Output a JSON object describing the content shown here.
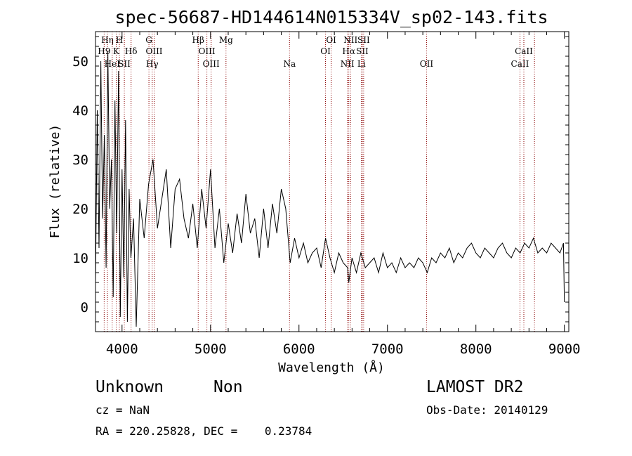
{
  "chart_data": {
    "type": "line",
    "title": "spec-56687-HD144614N015334V_sp02-143.fits",
    "xlabel": "Wavelength (Å)",
    "ylabel": "Flux (relative)",
    "xlim": [
      3700,
      9050
    ],
    "ylim": [
      -5,
      56
    ],
    "x_ticks": [
      4000,
      5000,
      6000,
      7000,
      8000,
      9000
    ],
    "y_ticks": [
      0,
      10,
      20,
      30,
      40,
      50
    ],
    "grid": false,
    "line_color": "#000000",
    "marker_color": "#8b0000",
    "series": [
      {
        "x": [
          3700,
          3720,
          3740,
          3760,
          3780,
          3800,
          3820,
          3840,
          3860,
          3880,
          3900,
          3920,
          3940,
          3960,
          3980,
          4000,
          4020,
          4040,
          4060,
          4080,
          4100,
          4130,
          4160,
          4200,
          4250,
          4300,
          4350,
          4400,
          4450,
          4500,
          4550,
          4600,
          4650,
          4700,
          4750,
          4800,
          4850,
          4900,
          4950,
          5000,
          5050,
          5100,
          5150,
          5200,
          5250,
          5300,
          5350,
          5400,
          5450,
          5500,
          5550,
          5600,
          5650,
          5700,
          5750,
          5800,
          5850,
          5900,
          5950,
          6000,
          6050,
          6100,
          6150,
          6200,
          6250,
          6300,
          6350,
          6400,
          6450,
          6500,
          6550,
          6563,
          6600,
          6650,
          6700,
          6750,
          6800,
          6850,
          6900,
          6950,
          7000,
          7050,
          7100,
          7150,
          7200,
          7250,
          7300,
          7350,
          7400,
          7450,
          7500,
          7550,
          7600,
          7650,
          7700,
          7750,
          7800,
          7850,
          7900,
          7950,
          8000,
          8050,
          8100,
          8150,
          8200,
          8250,
          8300,
          8350,
          8400,
          8450,
          8500,
          8550,
          8600,
          8650,
          8700,
          8750,
          8800,
          8850,
          8900,
          8950,
          8990,
          9000
        ],
        "y": [
          5,
          40,
          12,
          50,
          18,
          35,
          8,
          52,
          20,
          30,
          2,
          42,
          15,
          48,
          -2,
          28,
          6,
          38,
          -3,
          24,
          10,
          18,
          -4,
          22,
          14,
          25,
          30,
          16,
          22,
          28,
          12,
          24,
          26,
          18,
          14,
          21,
          12,
          24,
          16,
          28,
          12,
          20,
          9,
          17,
          11,
          19,
          13,
          23,
          15,
          18,
          10,
          20,
          12,
          21,
          15,
          24,
          20,
          9,
          14,
          10,
          13,
          9,
          11,
          12,
          8,
          14,
          10,
          7,
          11,
          9,
          8,
          5,
          10,
          7,
          11,
          8,
          9,
          10,
          7,
          11,
          8,
          9,
          7,
          10,
          8,
          9,
          8,
          10,
          9,
          7,
          10,
          9,
          11,
          10,
          12,
          9,
          11,
          10,
          12,
          13,
          11,
          10,
          12,
          11,
          10,
          12,
          13,
          11,
          10,
          12,
          11,
          13,
          12,
          14,
          11,
          12,
          11,
          13,
          12,
          11,
          13,
          1
        ]
      }
    ],
    "line_markers": [
      {
        "wavelength": 3798,
        "label": "H9",
        "row": 2
      },
      {
        "wavelength": 3835,
        "label": "Hη",
        "row": 1
      },
      {
        "wavelength": 3889,
        "label": "HeI",
        "row": 3
      },
      {
        "wavelength": 3934,
        "label": "K",
        "row": 2
      },
      {
        "wavelength": 3970,
        "label": "H",
        "row": 1
      },
      {
        "wavelength": 4026,
        "label": "SII",
        "row": 3
      },
      {
        "wavelength": 4102,
        "label": "Hδ",
        "row": 2
      },
      {
        "wavelength": 4304,
        "label": "G",
        "row": 1
      },
      {
        "wavelength": 4341,
        "label": "Hγ",
        "row": 3
      },
      {
        "wavelength": 4363,
        "label": "OIII",
        "row": 2
      },
      {
        "wavelength": 4861,
        "label": "Hβ",
        "row": 1
      },
      {
        "wavelength": 4959,
        "label": "OIII",
        "row": 2
      },
      {
        "wavelength": 5007,
        "label": "OIII",
        "row": 3
      },
      {
        "wavelength": 5175,
        "label": "Mg",
        "row": 1
      },
      {
        "wavelength": 5893,
        "label": "Na",
        "row": 3
      },
      {
        "wavelength": 6300,
        "label": "OI",
        "row": 2
      },
      {
        "wavelength": 6364,
        "label": "OI",
        "row": 1
      },
      {
        "wavelength": 6548,
        "label": "NII",
        "row": 3
      },
      {
        "wavelength": 6563,
        "label": "Hα",
        "row": 2
      },
      {
        "wavelength": 6583,
        "label": "NII",
        "row": 1
      },
      {
        "wavelength": 6707,
        "label": "Li",
        "row": 3
      },
      {
        "wavelength": 6716,
        "label": "SII",
        "row": 2
      },
      {
        "wavelength": 6731,
        "label": "SII",
        "row": 1
      },
      {
        "wavelength": 7442,
        "label": "OII",
        "row": 3
      },
      {
        "wavelength": 8498,
        "label": "CaII",
        "row": 3
      },
      {
        "wavelength": 8542,
        "label": "CaII",
        "row": 2
      },
      {
        "wavelength": 8662,
        "label": "",
        "row": 0
      }
    ]
  },
  "info": {
    "class": "Unknown",
    "subclass": "Non",
    "survey": "LAMOST DR2",
    "cz": "cz = NaN",
    "obs_date": "Obs-Date: 20140129",
    "coords": "RA = 220.25828, DEC =    0.23784"
  }
}
